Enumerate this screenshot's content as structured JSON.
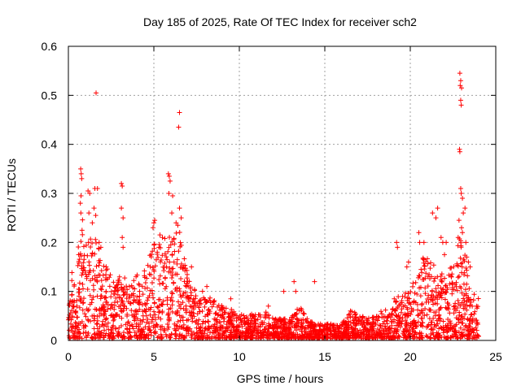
{
  "chart_data": {
    "type": "scatter",
    "title": "Day 185 of 2025, Rate Of TEC Index for receiver sch2",
    "xlabel": "GPS time / hours",
    "ylabel": "ROTI / TECUs",
    "xlim": [
      0,
      25
    ],
    "ylim": [
      0,
      0.6
    ],
    "xticks": [
      0,
      5,
      10,
      15,
      20,
      25
    ],
    "yticks": [
      0,
      0.1,
      0.2,
      0.3,
      0.4,
      0.5,
      0.6
    ],
    "xtick_labels": [
      "0",
      "5",
      "10",
      "15",
      "20",
      "25"
    ],
    "ytick_labels": [
      "0",
      "0.1",
      "0.2",
      "0.3",
      "0.4",
      "0.5",
      "0.6"
    ],
    "grid": true,
    "marker": "+",
    "color": "#ff0000",
    "envelope": [
      [
        0.0,
        0.13
      ],
      [
        0.5,
        0.17
      ],
      [
        0.8,
        0.25
      ],
      [
        1.0,
        0.19
      ],
      [
        1.5,
        0.22
      ],
      [
        2.0,
        0.17
      ],
      [
        2.5,
        0.13
      ],
      [
        3.0,
        0.13
      ],
      [
        3.5,
        0.12
      ],
      [
        4.0,
        0.13
      ],
      [
        4.5,
        0.14
      ],
      [
        5.0,
        0.2
      ],
      [
        5.5,
        0.22
      ],
      [
        6.0,
        0.21
      ],
      [
        6.5,
        0.22
      ],
      [
        7.0,
        0.13
      ],
      [
        7.5,
        0.1
      ],
      [
        8.0,
        0.1
      ],
      [
        8.5,
        0.08
      ],
      [
        9.0,
        0.07
      ],
      [
        9.5,
        0.06
      ],
      [
        10.0,
        0.05
      ],
      [
        10.5,
        0.05
      ],
      [
        11.0,
        0.05
      ],
      [
        11.5,
        0.06
      ],
      [
        12.0,
        0.04
      ],
      [
        12.5,
        0.04
      ],
      [
        13.0,
        0.04
      ],
      [
        13.5,
        0.07
      ],
      [
        14.0,
        0.04
      ],
      [
        14.5,
        0.03
      ],
      [
        15.0,
        0.03
      ],
      [
        15.5,
        0.03
      ],
      [
        16.0,
        0.03
      ],
      [
        16.5,
        0.06
      ],
      [
        17.0,
        0.05
      ],
      [
        17.5,
        0.04
      ],
      [
        18.0,
        0.05
      ],
      [
        18.5,
        0.06
      ],
      [
        19.0,
        0.08
      ],
      [
        19.5,
        0.09
      ],
      [
        20.0,
        0.1
      ],
      [
        20.5,
        0.15
      ],
      [
        21.0,
        0.18
      ],
      [
        21.5,
        0.14
      ],
      [
        22.0,
        0.13
      ],
      [
        22.5,
        0.17
      ],
      [
        23.0,
        0.22
      ],
      [
        23.5,
        0.1
      ],
      [
        24.0,
        0.09
      ]
    ],
    "highlights": [
      [
        0.72,
        0.35
      ],
      [
        0.75,
        0.34
      ],
      [
        0.78,
        0.33
      ],
      [
        0.74,
        0.295
      ],
      [
        0.7,
        0.28
      ],
      [
        0.73,
        0.26
      ],
      [
        1.15,
        0.305
      ],
      [
        1.25,
        0.3
      ],
      [
        1.55,
        0.31
      ],
      [
        1.7,
        0.31
      ],
      [
        1.62,
        0.505
      ],
      [
        1.5,
        0.27
      ],
      [
        1.6,
        0.255
      ],
      [
        1.4,
        0.24
      ],
      [
        1.2,
        0.26
      ],
      [
        1.8,
        0.2
      ],
      [
        1.9,
        0.19
      ],
      [
        3.1,
        0.32
      ],
      [
        3.15,
        0.315
      ],
      [
        3.1,
        0.27
      ],
      [
        3.2,
        0.25
      ],
      [
        3.15,
        0.21
      ],
      [
        3.2,
        0.19
      ],
      [
        5.0,
        0.24
      ],
      [
        5.05,
        0.245
      ],
      [
        4.95,
        0.23
      ],
      [
        5.5,
        0.21
      ],
      [
        5.85,
        0.34
      ],
      [
        5.9,
        0.335
      ],
      [
        5.95,
        0.325
      ],
      [
        5.88,
        0.3
      ],
      [
        6.1,
        0.295
      ],
      [
        6.05,
        0.26
      ],
      [
        6.5,
        0.465
      ],
      [
        6.45,
        0.435
      ],
      [
        6.5,
        0.27
      ],
      [
        6.6,
        0.25
      ],
      [
        6.3,
        0.24
      ],
      [
        6.4,
        0.235
      ],
      [
        5.3,
        0.19
      ],
      [
        5.2,
        0.18
      ],
      [
        7.2,
        0.15
      ],
      [
        8.1,
        0.11
      ],
      [
        9.5,
        0.085
      ],
      [
        11.7,
        0.07
      ],
      [
        12.6,
        0.1
      ],
      [
        13.2,
        0.12
      ],
      [
        13.3,
        0.1
      ],
      [
        14.4,
        0.12
      ],
      [
        16.5,
        0.06
      ],
      [
        19.2,
        0.2
      ],
      [
        19.25,
        0.19
      ],
      [
        19.9,
        0.16
      ],
      [
        19.8,
        0.15
      ],
      [
        20.5,
        0.22
      ],
      [
        20.55,
        0.2
      ],
      [
        20.8,
        0.2
      ],
      [
        21.3,
        0.26
      ],
      [
        21.5,
        0.25
      ],
      [
        21.6,
        0.27
      ],
      [
        21.8,
        0.21
      ],
      [
        21.9,
        0.2
      ],
      [
        22.0,
        0.175
      ],
      [
        22.1,
        0.2
      ],
      [
        22.9,
        0.545
      ],
      [
        22.95,
        0.53
      ],
      [
        22.92,
        0.52
      ],
      [
        23.0,
        0.515
      ],
      [
        22.95,
        0.49
      ],
      [
        22.98,
        0.48
      ],
      [
        22.88,
        0.39
      ],
      [
        22.9,
        0.385
      ],
      [
        22.95,
        0.31
      ],
      [
        22.98,
        0.3
      ],
      [
        23.05,
        0.29
      ],
      [
        23.2,
        0.27
      ],
      [
        23.1,
        0.26
      ],
      [
        22.85,
        0.245
      ],
      [
        23.0,
        0.23
      ],
      [
        23.05,
        0.22
      ],
      [
        22.8,
        0.21
      ],
      [
        23.25,
        0.2
      ],
      [
        23.3,
        0.17
      ],
      [
        23.4,
        0.16
      ],
      [
        23.5,
        0.15
      ]
    ]
  }
}
